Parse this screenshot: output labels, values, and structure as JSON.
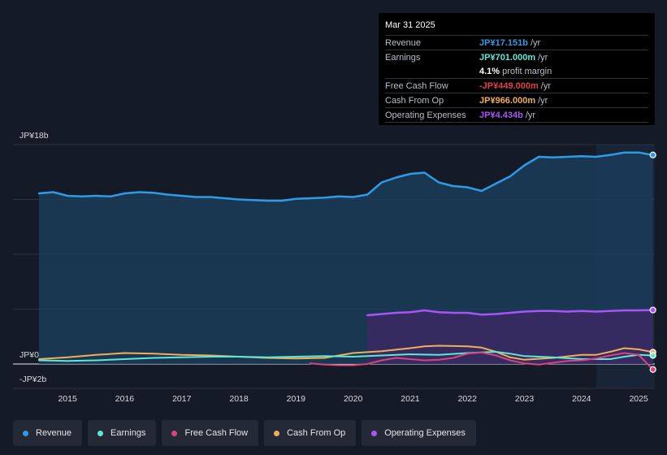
{
  "tooltip": {
    "date": "Mar 31 2025",
    "rows": [
      {
        "label": "Revenue",
        "value": "JP¥17.151b",
        "unit": "/yr",
        "color": "#2e9be8"
      },
      {
        "label": "Earnings",
        "value": "JP¥701.000m",
        "unit": "/yr",
        "color": "#5ee6d6"
      },
      {
        "label": "",
        "value": "4.1%",
        "unit": "profit margin",
        "color": "#ffffff"
      },
      {
        "label": "Free Cash Flow",
        "value": "-JP¥449.000m",
        "unit": "/yr",
        "color": "#e0404c"
      },
      {
        "label": "Cash From Op",
        "value": "JP¥966.000m",
        "unit": "/yr",
        "color": "#f0ae5a"
      },
      {
        "label": "Operating Expenses",
        "value": "JP¥4.434b",
        "unit": "/yr",
        "color": "#a855f7"
      }
    ]
  },
  "legend": [
    {
      "label": "Revenue",
      "color": "#2e9be8"
    },
    {
      "label": "Earnings",
      "color": "#5ee6d6"
    },
    {
      "label": "Free Cash Flow",
      "color": "#d6457c"
    },
    {
      "label": "Cash From Op",
      "color": "#f0ae5a"
    },
    {
      "label": "Operating Expenses",
      "color": "#a855f7"
    }
  ],
  "chart_data": {
    "type": "area",
    "title": "",
    "xlabel": "",
    "ylabel": "",
    "y_top_label": "JP¥18b",
    "y_zero_label": "JP¥0",
    "y_bottom_label": "-JP¥2b",
    "ylim": [
      -2,
      18
    ],
    "xlim": [
      2014.5,
      2025.25
    ],
    "x_ticks": [
      2015,
      2016,
      2017,
      2018,
      2019,
      2020,
      2021,
      2022,
      2023,
      2024,
      2025
    ],
    "x_tick_labels": [
      "2015",
      "2016",
      "2017",
      "2018",
      "2019",
      "2020",
      "2021",
      "2022",
      "2023",
      "2024",
      "2025"
    ],
    "grid": true,
    "forecast_start": 2024.25,
    "series": [
      {
        "name": "Revenue",
        "color": "#2e9be8",
        "fill": true,
        "x": [
          2014.5,
          2014.75,
          2015.0,
          2015.25,
          2015.5,
          2015.75,
          2016.0,
          2016.25,
          2016.5,
          2016.75,
          2017.0,
          2017.25,
          2017.5,
          2017.75,
          2018.0,
          2018.25,
          2018.5,
          2018.75,
          2019.0,
          2019.25,
          2019.5,
          2019.75,
          2020.0,
          2020.25,
          2020.5,
          2020.75,
          2021.0,
          2021.25,
          2021.5,
          2021.75,
          2022.0,
          2022.25,
          2022.5,
          2022.75,
          2023.0,
          2023.25,
          2023.5,
          2023.75,
          2024.0,
          2024.25,
          2024.5,
          2024.75,
          2025.0,
          2025.25
        ],
        "values": [
          14.0,
          14.1,
          13.8,
          13.75,
          13.8,
          13.75,
          14.0,
          14.1,
          14.05,
          13.9,
          13.8,
          13.7,
          13.7,
          13.6,
          13.5,
          13.45,
          13.4,
          13.4,
          13.55,
          13.6,
          13.65,
          13.75,
          13.7,
          13.9,
          14.9,
          15.3,
          15.6,
          15.7,
          14.9,
          14.6,
          14.5,
          14.2,
          14.8,
          15.4,
          16.3,
          17.0,
          16.95,
          17.0,
          17.05,
          17.0,
          17.15,
          17.35,
          17.35,
          17.15
        ]
      },
      {
        "name": "Operating Expenses",
        "color": "#a855f7",
        "fill": true,
        "x": [
          2020.25,
          2020.5,
          2020.75,
          2021.0,
          2021.25,
          2021.5,
          2021.75,
          2022.0,
          2022.25,
          2022.5,
          2022.75,
          2023.0,
          2023.25,
          2023.5,
          2023.75,
          2024.0,
          2024.25,
          2024.5,
          2024.75,
          2025.0,
          2025.25
        ],
        "values": [
          4.0,
          4.1,
          4.2,
          4.25,
          4.4,
          4.25,
          4.2,
          4.2,
          4.05,
          4.1,
          4.2,
          4.3,
          4.35,
          4.35,
          4.3,
          4.35,
          4.3,
          4.35,
          4.4,
          4.4,
          4.43
        ]
      },
      {
        "name": "Cash From Op",
        "color": "#f0ae5a",
        "fill": false,
        "x": [
          2014.5,
          2015.0,
          2015.5,
          2016.0,
          2016.5,
          2017.0,
          2017.5,
          2018.0,
          2018.5,
          2019.0,
          2019.5,
          2020.0,
          2020.5,
          2021.0,
          2021.25,
          2021.5,
          2022.0,
          2022.25,
          2022.5,
          2022.75,
          2023.0,
          2023.5,
          2024.0,
          2024.25,
          2024.5,
          2024.75,
          2025.0,
          2025.25
        ],
        "values": [
          0.4,
          0.55,
          0.75,
          0.9,
          0.85,
          0.75,
          0.7,
          0.6,
          0.5,
          0.45,
          0.5,
          0.9,
          1.05,
          1.3,
          1.45,
          1.5,
          1.45,
          1.35,
          1.0,
          0.55,
          0.35,
          0.5,
          0.75,
          0.75,
          1.0,
          1.3,
          1.2,
          0.97
        ]
      },
      {
        "name": "Earnings",
        "color": "#5ee6d6",
        "fill": false,
        "x": [
          2014.5,
          2015.0,
          2015.5,
          2016.0,
          2016.5,
          2017.0,
          2017.5,
          2018.0,
          2018.5,
          2019.0,
          2019.5,
          2020.0,
          2020.5,
          2021.0,
          2021.5,
          2022.0,
          2022.5,
          2022.75,
          2023.0,
          2023.5,
          2024.0,
          2024.5,
          2024.75,
          2025.0,
          2025.25
        ],
        "values": [
          0.3,
          0.25,
          0.3,
          0.4,
          0.5,
          0.55,
          0.6,
          0.6,
          0.55,
          0.6,
          0.65,
          0.6,
          0.7,
          0.8,
          0.75,
          0.9,
          1.0,
          0.85,
          0.65,
          0.55,
          0.4,
          0.4,
          0.6,
          0.75,
          0.7
        ]
      },
      {
        "name": "Free Cash Flow",
        "color": "#d6457c",
        "fill": false,
        "x": [
          2019.25,
          2019.5,
          2019.75,
          2020.0,
          2020.25,
          2020.5,
          2020.75,
          2021.0,
          2021.25,
          2021.5,
          2021.75,
          2022.0,
          2022.25,
          2022.5,
          2022.75,
          2023.0,
          2023.25,
          2023.5,
          2023.75,
          2024.0,
          2024.25,
          2024.5,
          2024.75,
          2025.0,
          2025.25
        ],
        "values": [
          0.05,
          -0.05,
          -0.1,
          -0.1,
          0.0,
          0.3,
          0.5,
          0.4,
          0.3,
          0.35,
          0.5,
          0.85,
          0.95,
          0.7,
          0.3,
          0.05,
          -0.05,
          0.1,
          0.25,
          0.3,
          0.45,
          0.7,
          0.9,
          0.75,
          -0.45
        ]
      }
    ]
  }
}
